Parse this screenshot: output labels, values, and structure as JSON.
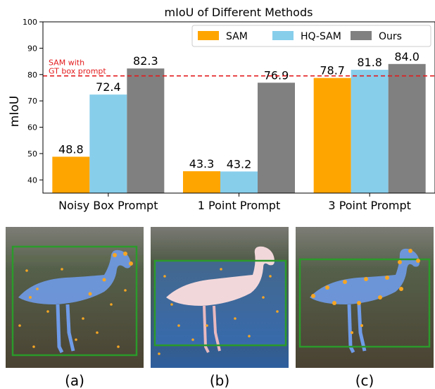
{
  "chart_data": {
    "type": "bar",
    "title": "mIoU of Different Methods",
    "xlabel": "",
    "ylabel": "mIoU",
    "ylim": [
      35,
      100
    ],
    "yticks": [
      40,
      50,
      60,
      70,
      80,
      90,
      100
    ],
    "categories": [
      "Noisy Box Prompt",
      "1 Point Prompt",
      "3 Point Prompt"
    ],
    "series": [
      {
        "name": "SAM",
        "color": "#FFA500",
        "values": [
          48.8,
          43.3,
          78.7
        ]
      },
      {
        "name": "HQ-SAM",
        "color": "#87CEEB",
        "values": [
          72.4,
          43.2,
          81.8
        ]
      },
      {
        "name": "Ours",
        "color": "#808080",
        "values": [
          82.3,
          76.9,
          84.0
        ]
      }
    ],
    "data_labels": [
      [
        "48.8",
        "43.3",
        "78.7"
      ],
      [
        "72.4",
        "43.2",
        "81.8"
      ],
      [
        "82.3",
        "76.9",
        "84.0"
      ]
    ],
    "reference_line": {
      "value": 79.5,
      "label_line1": "SAM with",
      "label_line2": "GT box prompt",
      "color": "#e31a1c"
    },
    "legend": "top-right",
    "grid": false
  },
  "panels": [
    {
      "caption": "(a)"
    },
    {
      "caption": "(b)"
    },
    {
      "caption": "(c)"
    }
  ]
}
